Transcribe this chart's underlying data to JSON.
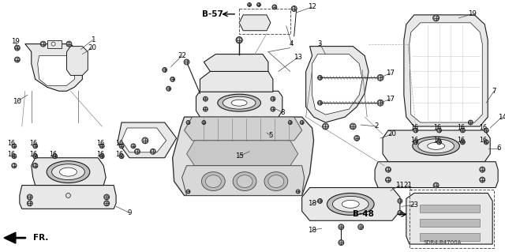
{
  "background": "#ffffff",
  "line_color": "#1a1a1a",
  "lw_main": 0.8,
  "lw_thin": 0.5,
  "lw_thick": 1.0,
  "label_fontsize": 6.5,
  "bold_labels": [
    "B-57",
    "B-48",
    "FR."
  ],
  "fill_gray": "#d0d0d0",
  "fill_light": "#e8e8e8",
  "fill_mid": "#b8b8b8",
  "fill_dark": "#888888",
  "rubber_fill": "#c0c0c0",
  "shadow": "#909090"
}
